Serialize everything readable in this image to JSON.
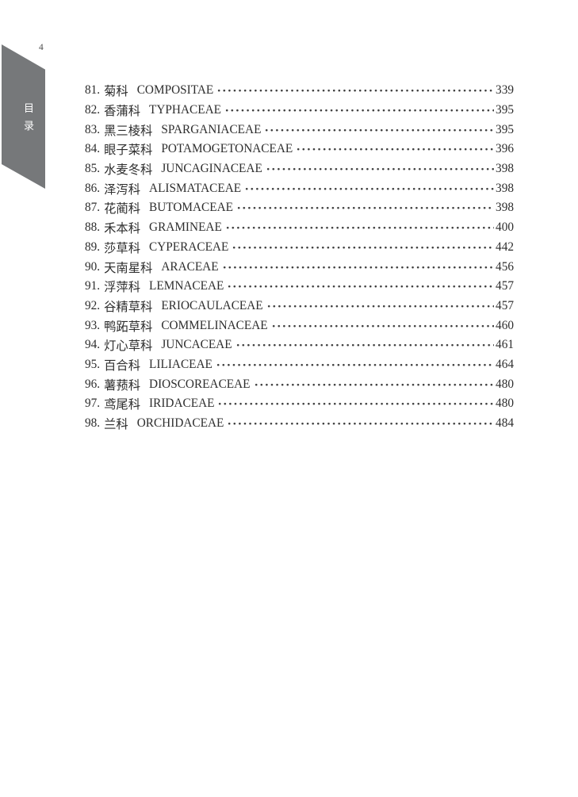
{
  "page": {
    "number": "4"
  },
  "sidebar_tab": {
    "label": "目录",
    "chars": [
      "目",
      "录"
    ],
    "background_color": "#76787a",
    "text_color": "#ffffff"
  },
  "toc": {
    "entries": [
      {
        "no": "81.",
        "cn": "菊科",
        "latin": "COMPOSITAE",
        "page": "339"
      },
      {
        "no": "82.",
        "cn": "香蒲科",
        "latin": "TYPHACEAE",
        "page": "395"
      },
      {
        "no": "83.",
        "cn": "黑三棱科",
        "latin": "SPARGANIACEAE",
        "page": "395"
      },
      {
        "no": "84.",
        "cn": "眼子菜科",
        "latin": "POTAMOGETONACEAE",
        "page": "396"
      },
      {
        "no": "85.",
        "cn": "水麦冬科",
        "latin": "JUNCAGINACEAE",
        "page": "398"
      },
      {
        "no": "86.",
        "cn": "泽泻科",
        "latin": "ALISMATACEAE",
        "page": "398"
      },
      {
        "no": "87.",
        "cn": "花蔺科",
        "latin": "BUTOMACEAE",
        "page": "398"
      },
      {
        "no": "88.",
        "cn": "禾本科",
        "latin": "GRAMINEAE",
        "page": "400"
      },
      {
        "no": "89.",
        "cn": "莎草科",
        "latin": "CYPERACEAE",
        "page": "442"
      },
      {
        "no": "90.",
        "cn": "天南星科",
        "latin": "ARACEAE",
        "page": "456"
      },
      {
        "no": "91.",
        "cn": "浮萍科",
        "latin": "LEMNACEAE",
        "page": "457"
      },
      {
        "no": "92.",
        "cn": "谷精草科",
        "latin": "ERIOCAULACEAE",
        "page": "457"
      },
      {
        "no": "93.",
        "cn": "鸭跖草科",
        "latin": "COMMELINACEAE",
        "page": "460"
      },
      {
        "no": "94.",
        "cn": "灯心草科",
        "latin": "JUNCACEAE",
        "page": "461"
      },
      {
        "no": "95.",
        "cn": "百合科",
        "latin": "LILIACEAE",
        "page": "464"
      },
      {
        "no": "96.",
        "cn": "薯蓣科",
        "latin": "DIOSCOREACEAE",
        "page": "480"
      },
      {
        "no": "97.",
        "cn": "鸢尾科",
        "latin": "IRIDACEAE",
        "page": "480"
      },
      {
        "no": "98.",
        "cn": "兰科",
        "latin": "ORCHIDACEAE",
        "page": "484"
      }
    ]
  }
}
